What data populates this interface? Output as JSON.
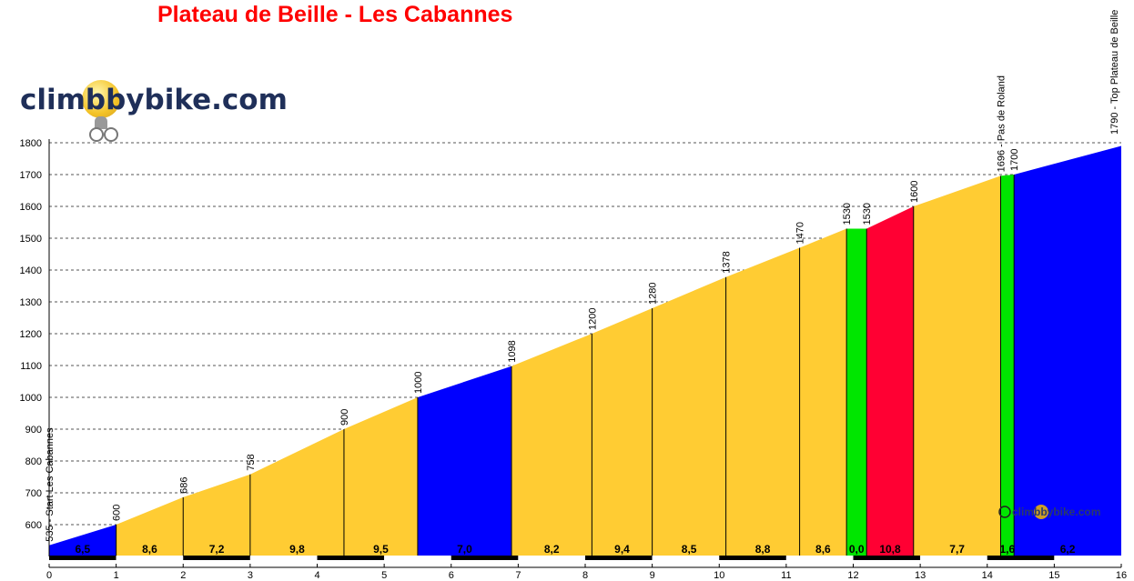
{
  "title": "Plateau de Beille - Les Cabannes",
  "brand": "climbbybike.com",
  "chart_data": {
    "type": "area",
    "title": "Plateau de Beille - Les Cabannes",
    "xlabel": "",
    "ylabel": "",
    "xlim": [
      0,
      16
    ],
    "ylim": [
      500,
      1800
    ],
    "x_ticks": [
      0,
      1,
      2,
      3,
      4,
      5,
      6,
      7,
      8,
      9,
      10,
      11,
      12,
      13,
      14,
      15,
      16
    ],
    "y_ticks": [
      600,
      700,
      800,
      900,
      1000,
      1100,
      1200,
      1300,
      1400,
      1500,
      1600,
      1700,
      1800
    ],
    "grid": "horizontal dashed",
    "points": [
      {
        "x": 0,
        "y": 535,
        "label": "535 - Start Les Cabannes"
      },
      {
        "x": 1,
        "y": 600,
        "label": "600"
      },
      {
        "x": 2,
        "y": 686,
        "label": "686"
      },
      {
        "x": 3,
        "y": 758,
        "label": "758"
      },
      {
        "x": 4.4,
        "y": 900,
        "label": "900"
      },
      {
        "x": 5.5,
        "y": 1000,
        "label": "1000"
      },
      {
        "x": 6.9,
        "y": 1098,
        "label": "1098"
      },
      {
        "x": 8.1,
        "y": 1200,
        "label": "1200"
      },
      {
        "x": 9.0,
        "y": 1280,
        "label": "1280"
      },
      {
        "x": 10.1,
        "y": 1378,
        "label": "1378"
      },
      {
        "x": 11.2,
        "y": 1470,
        "label": "1470"
      },
      {
        "x": 11.9,
        "y": 1530,
        "label": "1530"
      },
      {
        "x": 12.2,
        "y": 1530,
        "label": "1530"
      },
      {
        "x": 12.9,
        "y": 1600,
        "label": "1600"
      },
      {
        "x": 14.2,
        "y": 1696,
        "label": "1696 - Pas de Roland"
      },
      {
        "x": 14.4,
        "y": 1700,
        "label": "1700"
      },
      {
        "x": 16,
        "y": 1790,
        "label": "1790 - Top Plateau de Beille"
      }
    ],
    "segments": [
      {
        "grade": "6,5",
        "color": "#0000ff"
      },
      {
        "grade": "8,6",
        "color": "#ffcc33"
      },
      {
        "grade": "7,2",
        "color": "#ffcc33"
      },
      {
        "grade": "9,8",
        "color": "#ffcc33"
      },
      {
        "grade": "9,5",
        "color": "#ffcc33"
      },
      {
        "grade": "7,0",
        "color": "#0000ff"
      },
      {
        "grade": "8,2",
        "color": "#ffcc33"
      },
      {
        "grade": "9,4",
        "color": "#ffcc33"
      },
      {
        "grade": "8,5",
        "color": "#ffcc33"
      },
      {
        "grade": "8,8",
        "color": "#ffcc33"
      },
      {
        "grade": "8,6",
        "color": "#ffcc33"
      },
      {
        "grade": "0,0",
        "color": "#00e600"
      },
      {
        "grade": "10,8",
        "color": "#ff0033"
      },
      {
        "grade": "7,7",
        "color": "#ffcc33"
      },
      {
        "grade": "1,6",
        "color": "#00e600"
      },
      {
        "grade": "6,2",
        "color": "#0000ff"
      }
    ]
  }
}
